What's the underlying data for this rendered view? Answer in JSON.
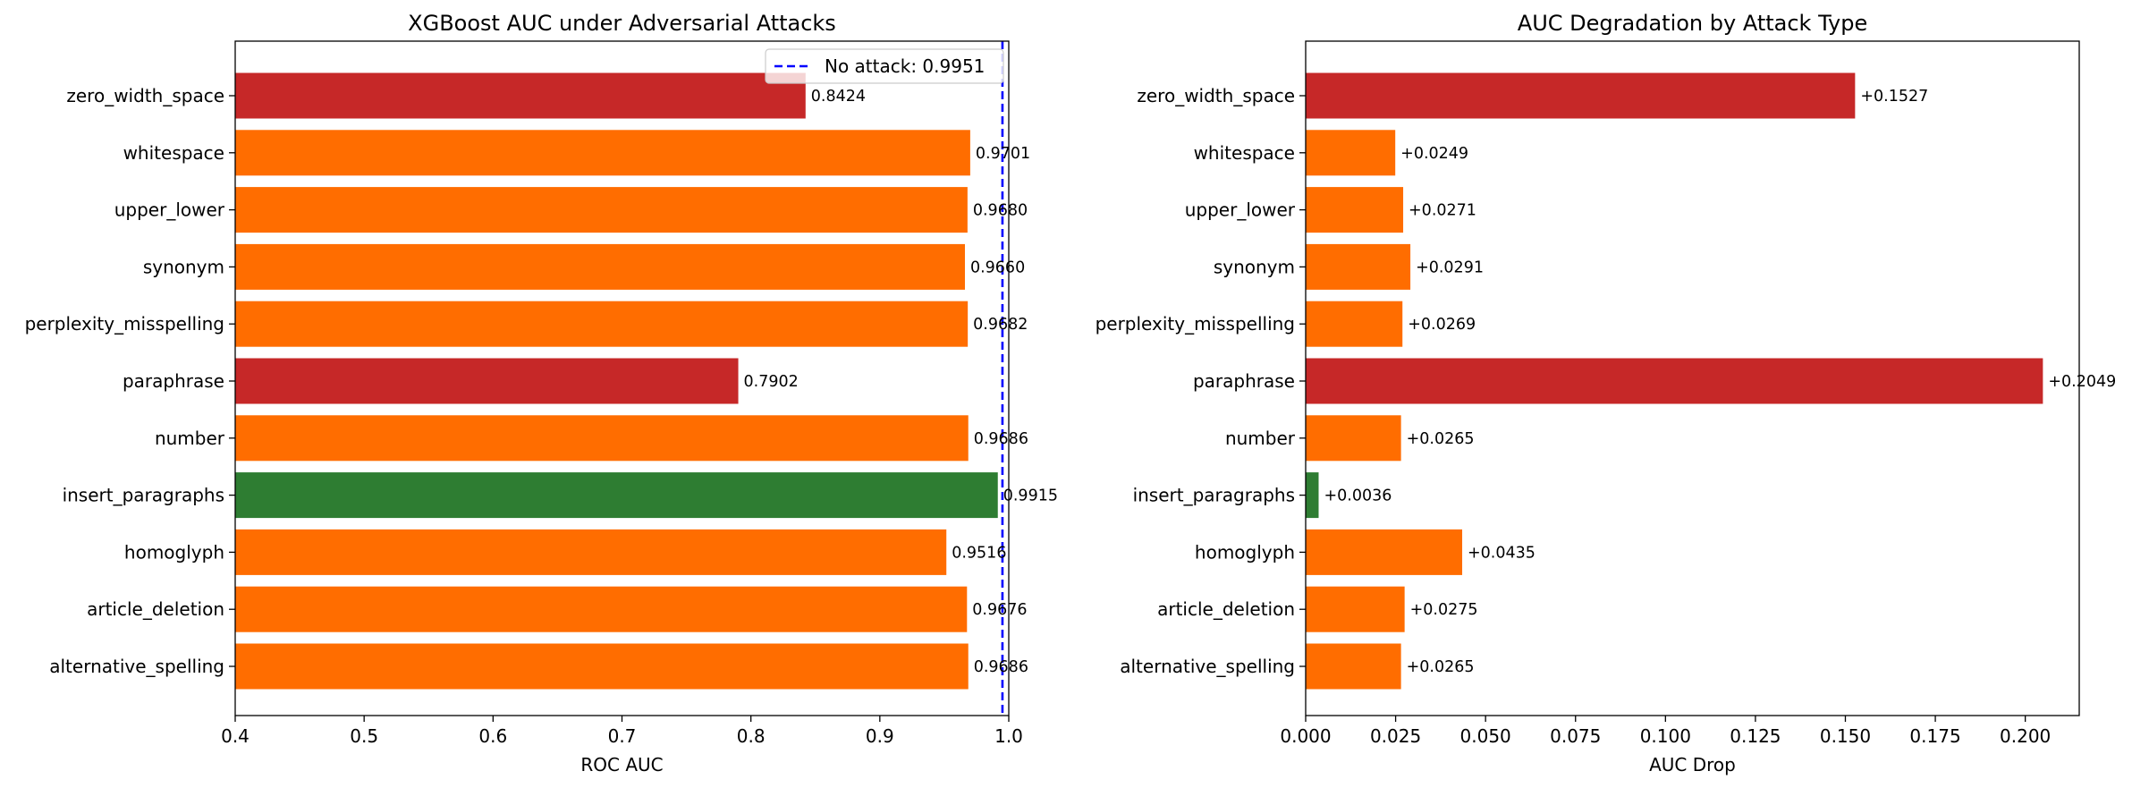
{
  "chart_data": [
    {
      "type": "bar",
      "orientation": "horizontal",
      "title": "XGBoost AUC under Adversarial Attacks",
      "xlabel": "ROC AUC",
      "ylabel": "",
      "xlim": [
        0.4,
        1.0
      ],
      "xticks": [
        "0.4",
        "0.5",
        "0.6",
        "0.7",
        "0.8",
        "0.9",
        "1.0"
      ],
      "categories": [
        "zero_width_space",
        "whitespace",
        "upper_lower",
        "synonym",
        "perplexity_misspelling",
        "paraphrase",
        "number",
        "insert_paragraphs",
        "homoglyph",
        "article_deletion",
        "alternative_spelling"
      ],
      "values": [
        0.8424,
        0.9701,
        0.968,
        0.966,
        0.9682,
        0.7902,
        0.9686,
        0.9915,
        0.9516,
        0.9676,
        0.9686
      ],
      "labels": [
        "0.8424",
        "0.9701",
        "0.9680",
        "0.9660",
        "0.9682",
        "0.7902",
        "0.9686",
        "0.9915",
        "0.9516",
        "0.9676",
        "0.9686"
      ],
      "bar_colors": [
        "#c62828",
        "#ff6d00",
        "#ff6d00",
        "#ff6d00",
        "#ff6d00",
        "#c62828",
        "#ff6d00",
        "#2e7d32",
        "#ff6d00",
        "#ff6d00",
        "#ff6d00"
      ],
      "reference_line": {
        "value": 0.9951,
        "label": "No attack: 0.9951",
        "color": "#0000ff",
        "style": "dashed"
      },
      "legend": {
        "placement": "top-right",
        "entries": [
          "No attack: 0.9951"
        ]
      },
      "grid": false
    },
    {
      "type": "bar",
      "orientation": "horizontal",
      "title": "AUC Degradation by Attack Type",
      "xlabel": "AUC Drop",
      "ylabel": "",
      "xlim": [
        0.0,
        0.215
      ],
      "xticks": [
        "0.000",
        "0.025",
        "0.050",
        "0.075",
        "0.100",
        "0.125",
        "0.150",
        "0.175",
        "0.200"
      ],
      "categories": [
        "zero_width_space",
        "whitespace",
        "upper_lower",
        "synonym",
        "perplexity_misspelling",
        "paraphrase",
        "number",
        "insert_paragraphs",
        "homoglyph",
        "article_deletion",
        "alternative_spelling"
      ],
      "values": [
        0.1527,
        0.0249,
        0.0271,
        0.0291,
        0.0269,
        0.2049,
        0.0265,
        0.0036,
        0.0435,
        0.0275,
        0.0265
      ],
      "labels": [
        "+0.1527",
        "+0.0249",
        "+0.0271",
        "+0.0291",
        "+0.0269",
        "+0.2049",
        "+0.0265",
        "+0.0036",
        "+0.0435",
        "+0.0275",
        "+0.0265"
      ],
      "bar_colors": [
        "#c62828",
        "#ff6d00",
        "#ff6d00",
        "#ff6d00",
        "#ff6d00",
        "#c62828",
        "#ff6d00",
        "#2e7d32",
        "#ff6d00",
        "#ff6d00",
        "#ff6d00"
      ],
      "grid": false
    }
  ]
}
